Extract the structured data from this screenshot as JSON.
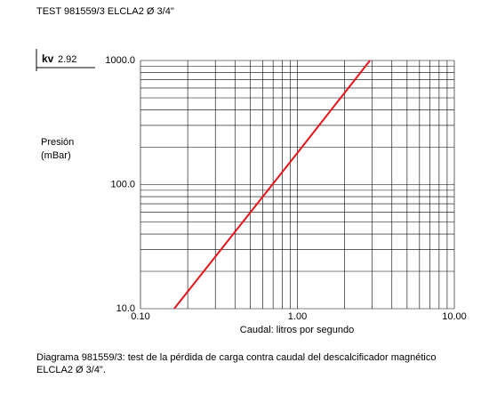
{
  "chart_data": {
    "type": "line",
    "title": "TEST 981559/3 ELCLA2 Ø 3/4\"",
    "annotation": {
      "label": "kv",
      "value": "2.92"
    },
    "ylabel": [
      "Presión",
      "(mBar)"
    ],
    "xlabel": "Caudal: litros por segundo",
    "caption": [
      "Diagrama 981559/3: test de la  pérdida de carga contra caudal del descalcificador magnético",
      "ELCLA2 Ø 3/4\"."
    ],
    "log_x": true,
    "log_y": true,
    "grid": true,
    "xlim": [
      0.1,
      10
    ],
    "ylim": [
      10,
      1000
    ],
    "xticks": [
      {
        "value": 0.1,
        "label": "0.10"
      },
      {
        "value": 1,
        "label": "1.00"
      },
      {
        "value": 10,
        "label": "10.00"
      }
    ],
    "yticks": [
      {
        "value": 10,
        "label": "10.0"
      },
      {
        "value": 100,
        "label": "100.0"
      },
      {
        "value": 1000,
        "label": "1000.0"
      }
    ],
    "xminor": [
      0.2,
      0.3,
      0.4,
      0.5,
      0.6,
      0.7,
      0.8,
      0.9,
      2,
      3,
      4,
      5,
      6,
      7,
      8,
      9
    ],
    "yminor": [
      20,
      30,
      40,
      50,
      60,
      70,
      80,
      90,
      200,
      300,
      400,
      500,
      600,
      700,
      800,
      900
    ],
    "series": [
      {
        "color": "#e8141a",
        "x": [
          0.164,
          1,
          2.9
        ],
        "values": [
          10,
          180,
          1000
        ]
      }
    ]
  }
}
